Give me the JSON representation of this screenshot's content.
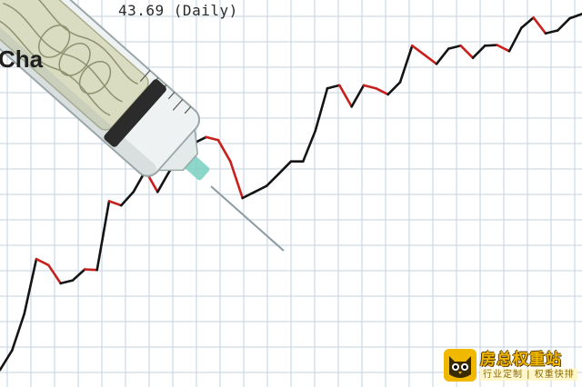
{
  "header": {
    "quote_text": "43.69 (Daily)",
    "title_fragment": "Cha"
  },
  "watermark": {
    "brand": "房总权重站",
    "slogan": "行业定制 | 权重快排",
    "icon": "owl-icon"
  },
  "colors": {
    "background": "#ffffff",
    "grid": "#c6d2e2",
    "up_segment": "#141414",
    "down_segment": "#c8201c",
    "syringe_needle": "#8a9aa0",
    "syringe_hub": "#7fd3c4",
    "banknote": "#d9dcc0",
    "watermark_yellow": "#f0b800"
  },
  "chart_data": {
    "type": "line",
    "series": [
      {
        "values": [
          128,
          160,
          220,
          310,
          300,
          270,
          275,
          293,
          292,
          405,
          398,
          420,
          455,
          420,
          455,
          470,
          500,
          510,
          505,
          470,
          410,
          420,
          430,
          450,
          470,
          470,
          520,
          590,
          595,
          560,
          595,
          590,
          580,
          600,
          660,
          645,
          630,
          655,
          660,
          640,
          660,
          661,
          651,
          689,
          706,
          680,
          685,
          705,
          712
        ]
      }
    ]
  }
}
